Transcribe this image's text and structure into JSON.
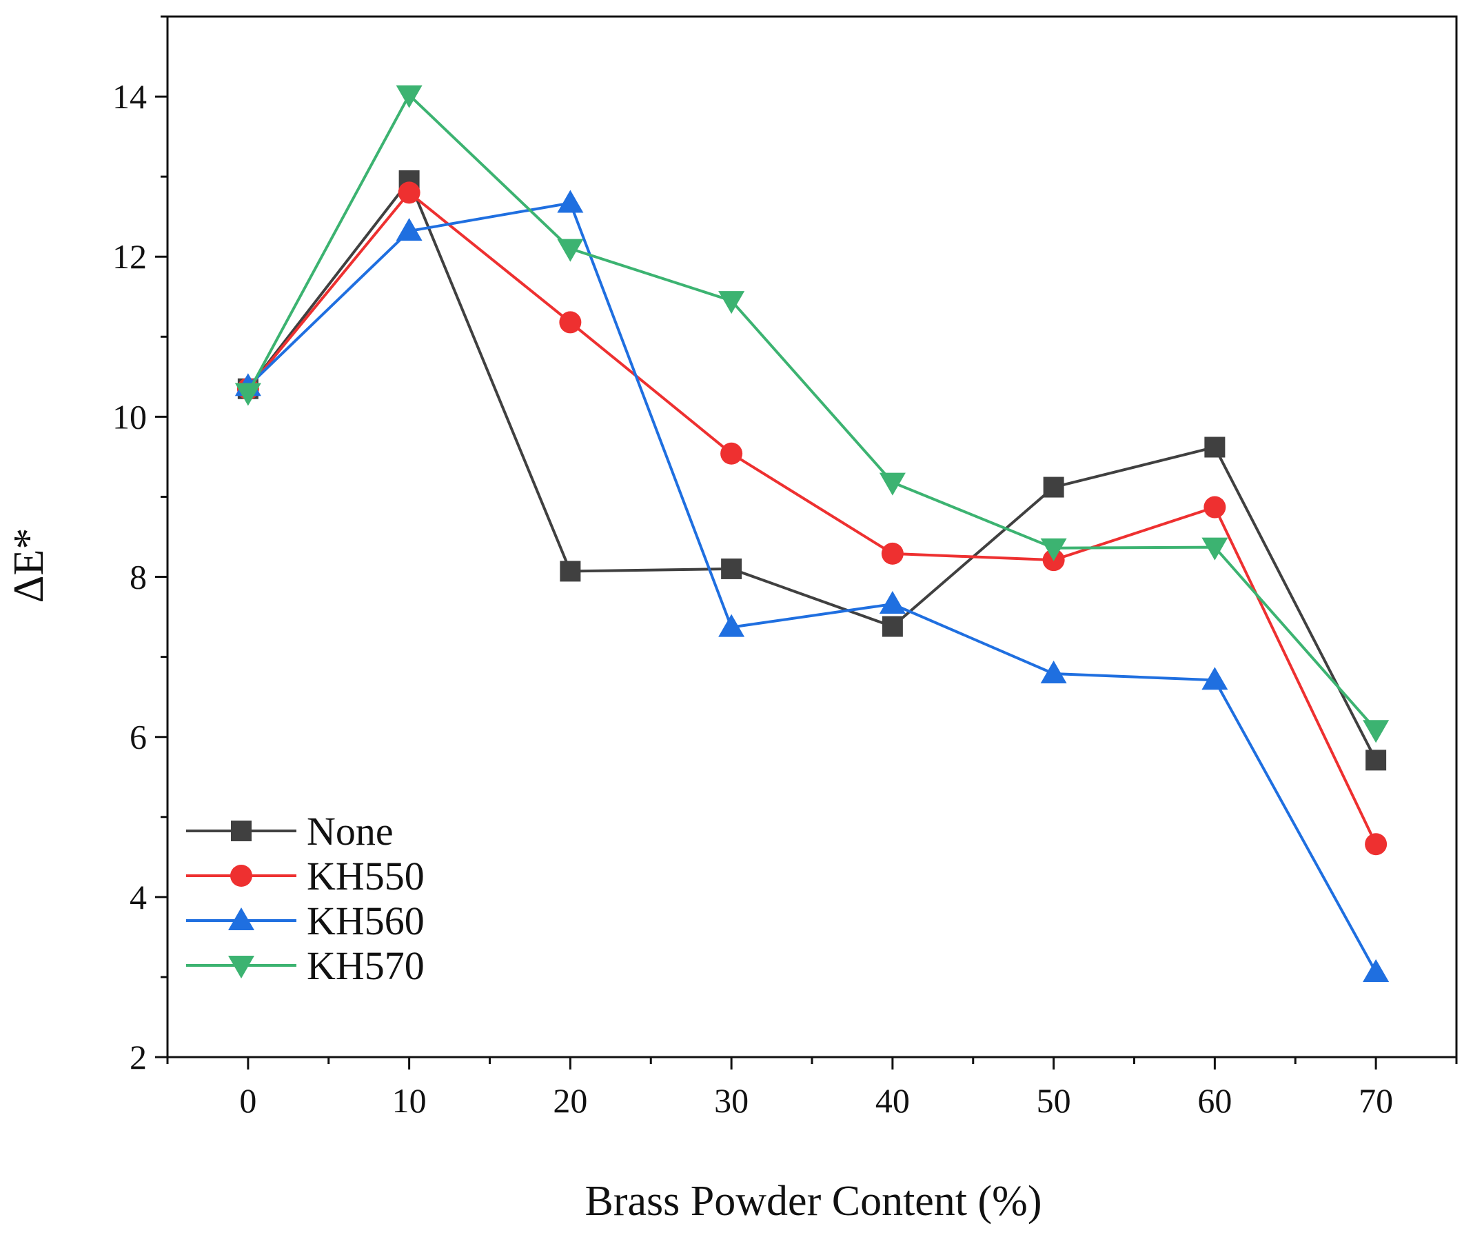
{
  "chart_data": {
    "type": "line",
    "title": "",
    "xlabel": "Brass Powder Content (%)",
    "ylabel_prefix": "ΔE",
    "ylabel_suffix": "*",
    "x": [
      0,
      10,
      20,
      30,
      40,
      50,
      60,
      70
    ],
    "xlim": [
      -5,
      75
    ],
    "ylim": [
      2,
      15
    ],
    "xticks": [
      "0",
      "10",
      "20",
      "30",
      "40",
      "50",
      "60",
      "70"
    ],
    "yticks": [
      "2",
      "4",
      "6",
      "8",
      "10",
      "12",
      "14"
    ],
    "grid": false,
    "legend_position": "bottom-left",
    "series": [
      {
        "name": "None",
        "color": "#404040",
        "marker": "square",
        "values": [
          10.35,
          12.95,
          8.07,
          8.1,
          7.38,
          9.12,
          9.62,
          5.71
        ]
      },
      {
        "name": "KH550",
        "color": "#ee3030",
        "marker": "circle",
        "values": [
          10.35,
          12.8,
          11.18,
          9.54,
          8.29,
          8.21,
          8.87,
          4.66
        ]
      },
      {
        "name": "KH560",
        "color": "#1f6fe0",
        "marker": "triangle-up",
        "values": [
          10.38,
          12.32,
          12.67,
          7.37,
          7.66,
          6.79,
          6.71,
          3.06
        ]
      },
      {
        "name": "KH570",
        "color": "#3cb371",
        "marker": "triangle-down",
        "values": [
          10.3,
          14.02,
          12.1,
          11.45,
          9.18,
          8.36,
          8.37,
          6.09
        ]
      }
    ]
  }
}
